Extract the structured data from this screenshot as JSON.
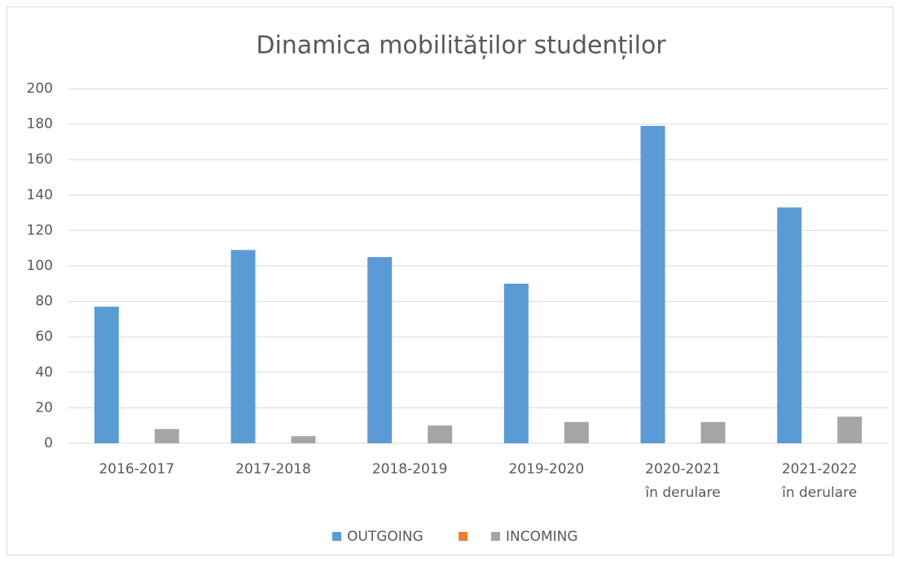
{
  "chart_data": {
    "type": "bar",
    "title": "Dinamica mobilităților studenților",
    "categories": [
      [
        "2016-2017"
      ],
      [
        "2017-2018"
      ],
      [
        "2018-2019"
      ],
      [
        "2019-2020"
      ],
      [
        "2020-2021",
        "în derulare"
      ],
      [
        "2021-2022",
        "în derulare"
      ]
    ],
    "series": [
      {
        "name": "OUTGOING",
        "color": "#5b9bd5",
        "values": [
          77,
          109,
          105,
          90,
          179,
          133
        ]
      },
      {
        "name": null,
        "color": "#ed7d31",
        "values": [
          0,
          0,
          0,
          0,
          0,
          0
        ]
      },
      {
        "name": "INCOMING",
        "color": "#a5a5a5",
        "values": [
          8,
          4,
          10,
          12,
          12,
          15
        ]
      }
    ],
    "ylim": [
      0,
      200
    ],
    "yticks": [
      0,
      20,
      40,
      60,
      80,
      100,
      120,
      140,
      160,
      180,
      200
    ],
    "grid": true,
    "legend": "bottom"
  }
}
